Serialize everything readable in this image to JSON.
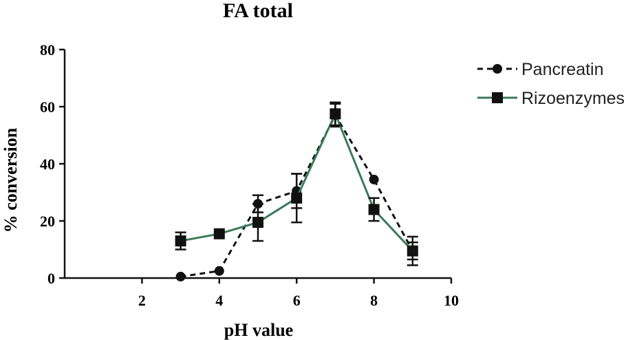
{
  "chart_data": {
    "type": "line",
    "title": "FA total",
    "xlabel": "pH value",
    "ylabel": "% conversion",
    "xlim": [
      0,
      10
    ],
    "ylim": [
      0,
      80
    ],
    "xticks": [
      2,
      4,
      6,
      8,
      10
    ],
    "yticks": [
      0,
      20,
      40,
      60,
      80
    ],
    "grid": false,
    "legend_position": "top-right",
    "series": [
      {
        "name": "Pancreatin",
        "color": "#111111",
        "line_style": "dashed",
        "marker": "circle",
        "x": [
          3,
          4,
          5,
          6,
          7,
          8,
          9
        ],
        "y": [
          0.5,
          2.5,
          26,
          30.5,
          57,
          34.5,
          9.5
        ],
        "err": [
          0,
          0,
          3,
          6,
          4,
          0,
          5
        ]
      },
      {
        "name": "Rizoenzymes",
        "color": "#3a7a58",
        "line_style": "solid",
        "marker": "square",
        "x": [
          3,
          4,
          5,
          6,
          7,
          8,
          9
        ],
        "y": [
          13,
          15.5,
          19.5,
          28,
          57.5,
          24,
          9.5
        ],
        "err": [
          3,
          0,
          6.5,
          8.5,
          4,
          4,
          3
        ]
      }
    ]
  }
}
